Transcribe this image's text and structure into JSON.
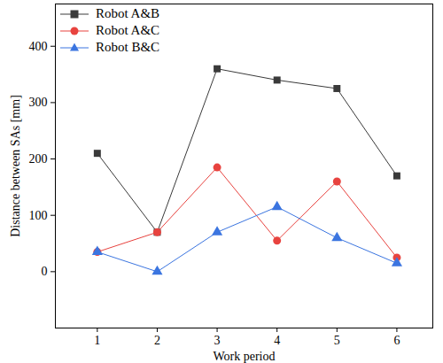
{
  "chart_data": {
    "type": "line",
    "x_label": "Work period",
    "y_label": "Distance between SAs [mm]",
    "x": [
      1,
      2,
      3,
      4,
      5,
      6
    ],
    "xlim": [
      0.3,
      6.6
    ],
    "xticks": [
      1,
      2,
      3,
      4,
      5,
      6
    ],
    "ylim": [
      -100,
      475
    ],
    "yticks": [
      0,
      100,
      200,
      300,
      400
    ],
    "grid": false,
    "legend": "upper left",
    "series": [
      {
        "name": "Robot A&B",
        "color": "#3a3a3a",
        "marker": "square",
        "values": [
          210,
          70,
          360,
          340,
          325,
          170
        ]
      },
      {
        "name": "Robot A&C",
        "color": "#e8433f",
        "marker": "circle",
        "values": [
          35,
          70,
          185,
          55,
          160,
          25
        ]
      },
      {
        "name": "Robot B&C",
        "color": "#3b75e0",
        "marker": "triangle",
        "values": [
          35,
          0,
          70,
          115,
          60,
          15
        ]
      }
    ]
  }
}
